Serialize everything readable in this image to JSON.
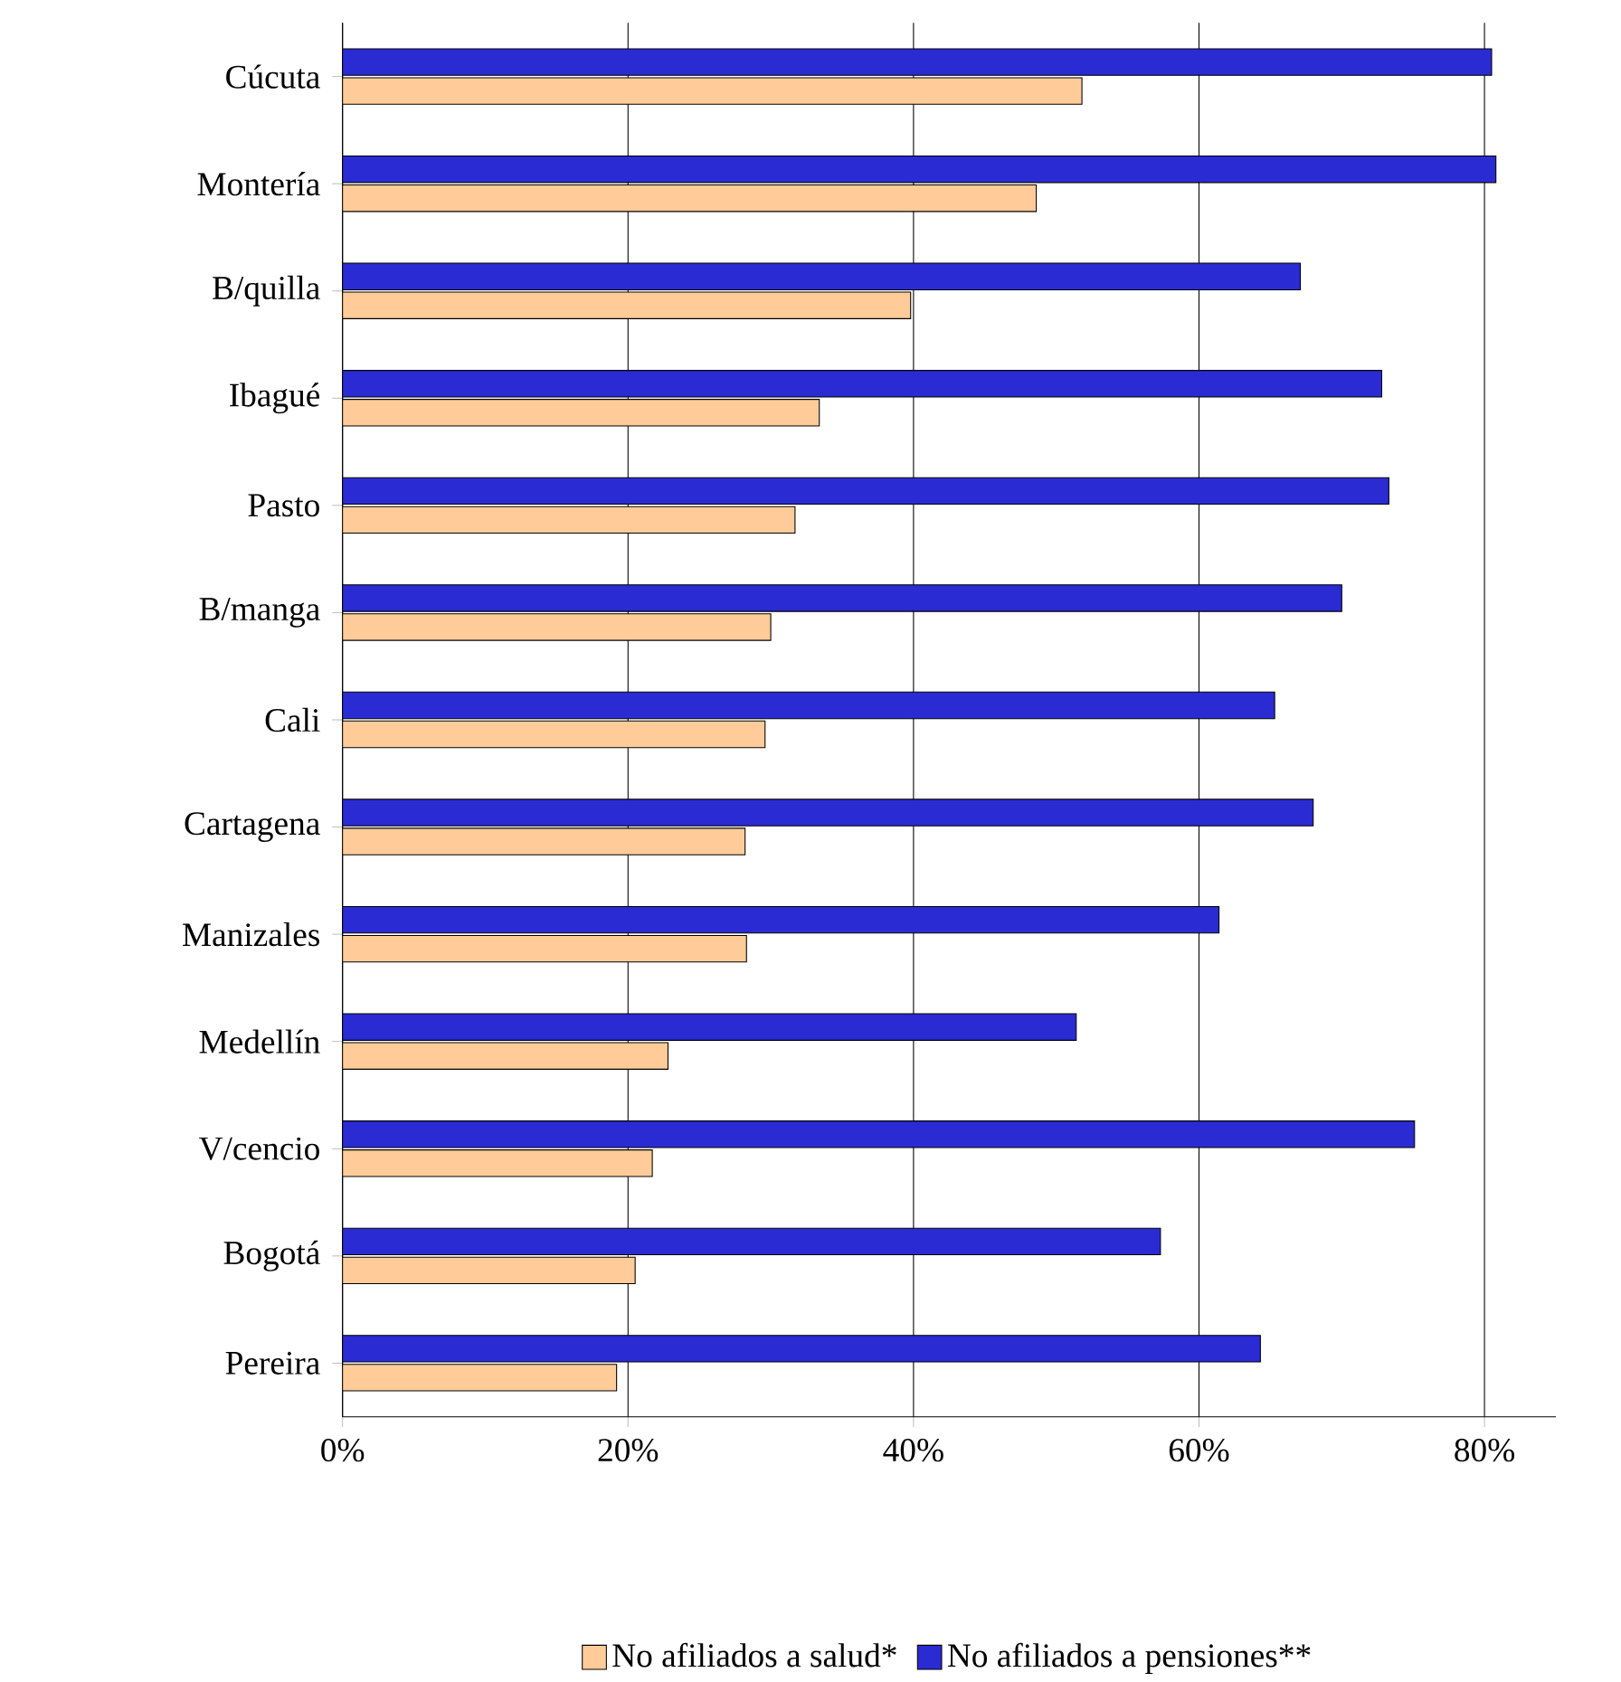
{
  "chart_data": {
    "type": "bar",
    "orientation": "horizontal",
    "categories": [
      "Cúcuta",
      "Montería",
      "B/quilla",
      "Ibagué",
      "Pasto",
      "B/manga",
      "Cali",
      "Cartagena",
      "Manizales",
      "Medellín",
      "V/cencio",
      "Bogotá",
      "Pereira"
    ],
    "series": [
      {
        "name": "No afiliados a salud*",
        "color": "#ffcc99",
        "values": [
          51.8,
          48.6,
          39.8,
          33.4,
          31.7,
          30,
          29.6,
          28.2,
          28.3,
          22.8,
          21.7,
          20.5,
          19.2
        ]
      },
      {
        "name": "No afiliados a pensiones**",
        "color": "#2b2bd4",
        "values": [
          80.5,
          80.8,
          67.1,
          72.8,
          73.3,
          70,
          65.3,
          68,
          61.4,
          51.4,
          75.1,
          57.3,
          64.3
        ]
      }
    ],
    "xlim": [
      0,
      85
    ],
    "xticks": [
      {
        "value": 0,
        "label": "0%"
      },
      {
        "value": 20,
        "label": "20%"
      },
      {
        "value": 40,
        "label": "40%"
      },
      {
        "value": 60,
        "label": "60%"
      },
      {
        "value": 80,
        "label": "80%"
      }
    ],
    "grid": "x",
    "legend": "bottom"
  }
}
